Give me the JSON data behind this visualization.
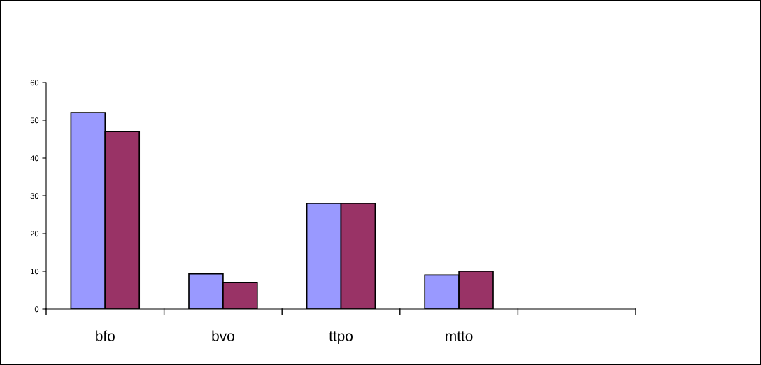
{
  "chart_data": {
    "type": "bar",
    "categories": [
      "bfo",
      "bvo",
      "ttpo",
      "mtto",
      null
    ],
    "series": [
      {
        "color": "#9999ff",
        "values": [
          52,
          9.3,
          28,
          9,
          null
        ]
      },
      {
        "color": "#993366",
        "values": [
          47,
          7,
          28,
          10,
          null
        ]
      }
    ],
    "ylim": [
      0,
      60
    ],
    "yticks": [
      0,
      10,
      20,
      30,
      40,
      50,
      60
    ],
    "grid": false
  }
}
